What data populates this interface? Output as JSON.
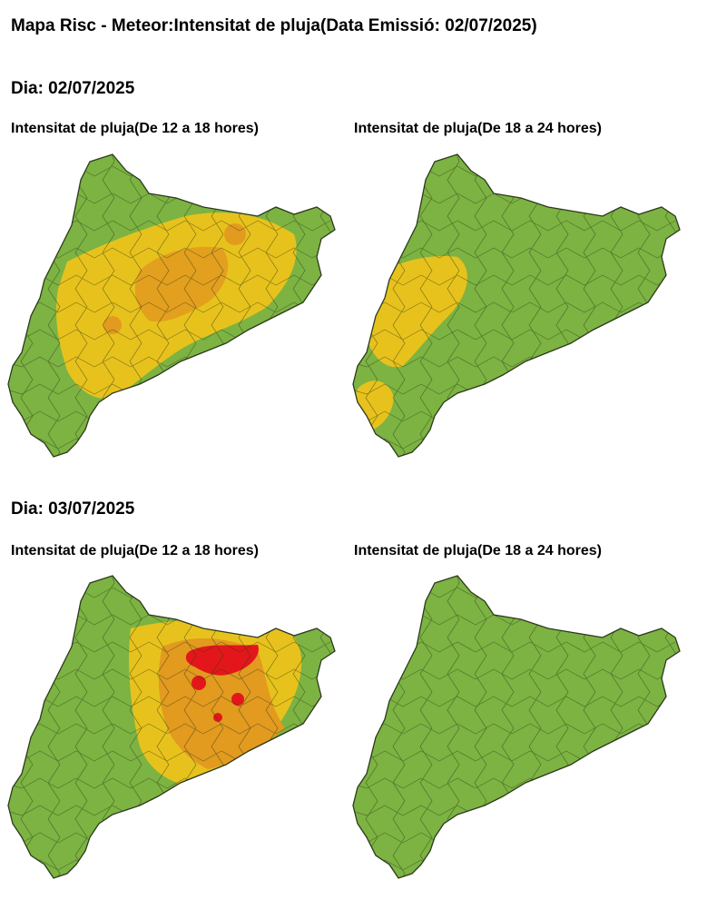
{
  "title": "Mapa Risc - Meteor:Intensitat de pluja(Data Emissió: 02/07/2025)",
  "colors": {
    "green": "#7cb342",
    "yellow": "#e8c21c",
    "orange": "#e29a1f",
    "red": "#e3171b",
    "border": "#2c3a1c"
  },
  "days": [
    {
      "label": "Dia: 02/07/2025",
      "maps": [
        {
          "caption": "Intensitat de pluja(De 12 a 18 hores)",
          "levels": {
            "yellow": "central-west band",
            "orange": "scattered central",
            "red": "none"
          }
        },
        {
          "caption": "Intensitat de pluja(De 18 a 24 hores)",
          "levels": {
            "yellow": "western strip",
            "orange": "none",
            "red": "none"
          }
        }
      ]
    },
    {
      "label": "Dia: 03/07/2025",
      "maps": [
        {
          "caption": "Intensitat de pluja(De 12 a 18 hores)",
          "levels": {
            "yellow": "central and north-east",
            "orange": "central",
            "red": "central-north"
          }
        },
        {
          "caption": "Intensitat de pluja(De 18 a 24 hores)",
          "levels": {
            "yellow": "none",
            "orange": "none",
            "red": "none"
          }
        }
      ]
    }
  ]
}
